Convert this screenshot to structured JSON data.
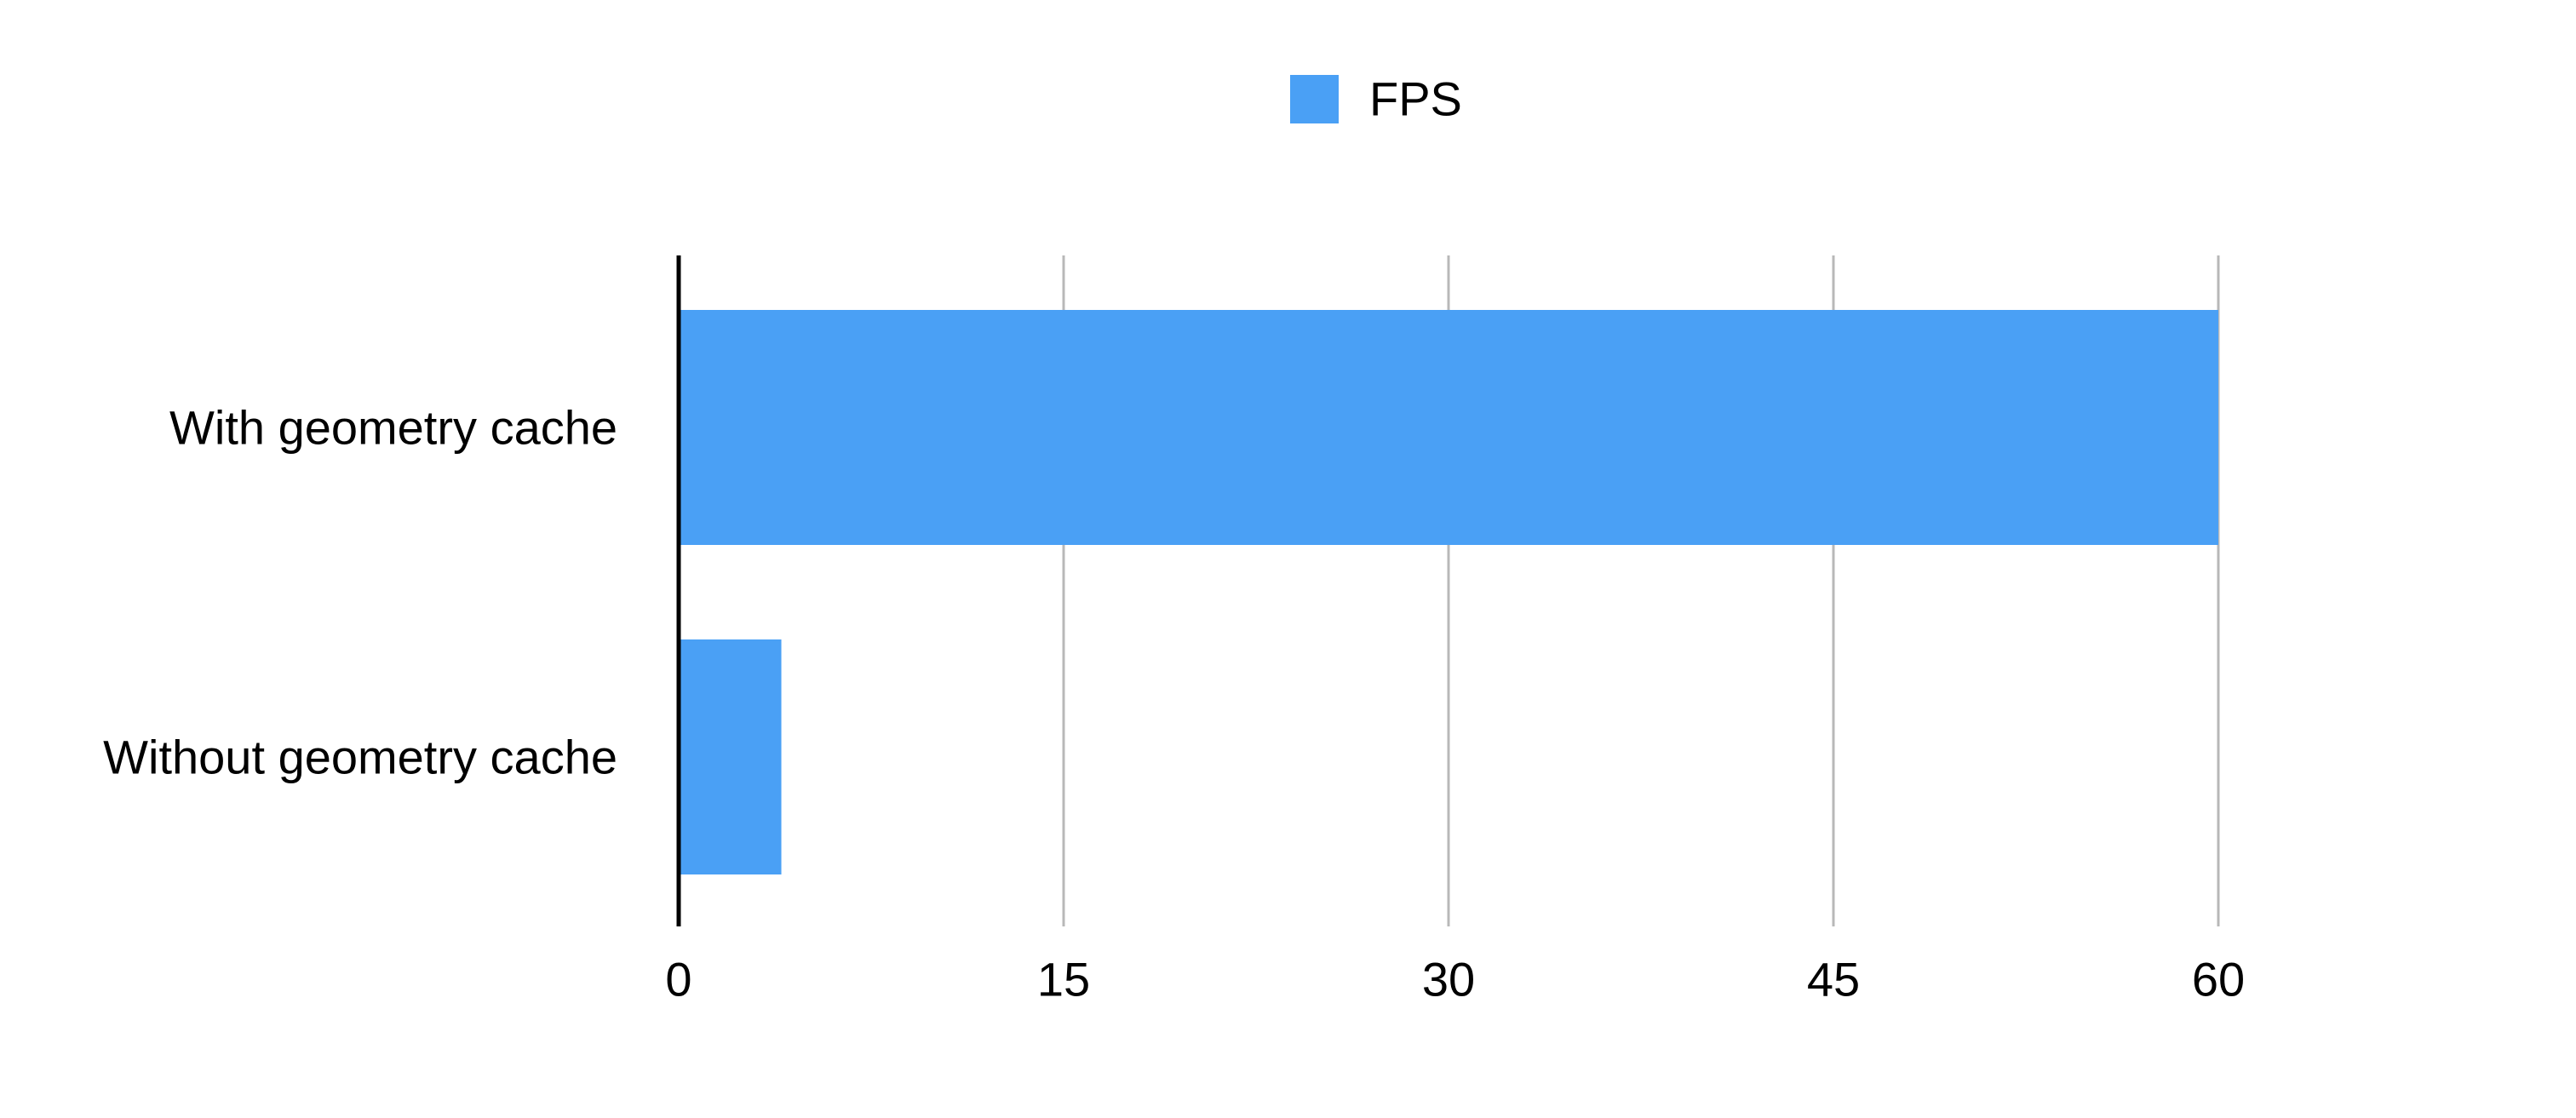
{
  "chart_data": {
    "type": "bar",
    "orientation": "horizontal",
    "categories": [
      "With geometry cache",
      "Without geometry cache"
    ],
    "series": [
      {
        "name": "FPS",
        "values": [
          60,
          4
        ],
        "color": "#4aa0f5"
      }
    ],
    "title": "",
    "xlabel": "",
    "ylabel": "",
    "xlim": [
      0,
      60
    ],
    "xticks": [
      0,
      15,
      30,
      45,
      60
    ],
    "xtick_labels": [
      "0",
      "15",
      "30",
      "45",
      "60"
    ],
    "grid": "vertical",
    "legend": {
      "position": "top-center",
      "entries": [
        "FPS"
      ]
    }
  },
  "colors": {
    "bar": "#4aa0f5",
    "grid": "#b8b8b8",
    "axis": "#000000",
    "text": "#000000",
    "background": "#ffffff"
  }
}
